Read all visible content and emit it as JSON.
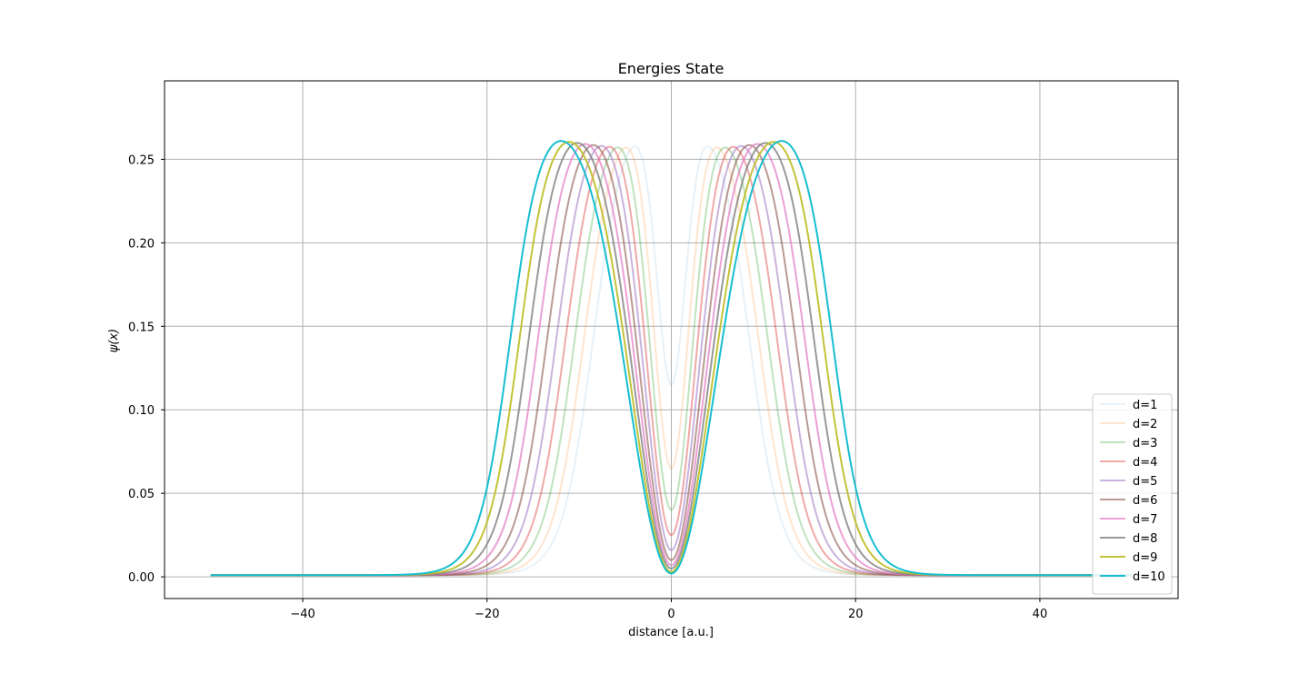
{
  "chart_data": {
    "type": "line",
    "title": "Energies State",
    "xlabel": "distance [a.u.]",
    "ylabel": "ψ(x)",
    "xlim": [
      -55,
      55
    ],
    "ylim": [
      -0.013,
      0.297
    ],
    "xticks": [
      -40,
      -20,
      0,
      20,
      40
    ],
    "xtick_labels": [
      "−40",
      "−20",
      "0",
      "20",
      "40"
    ],
    "yticks": [
      0.0,
      0.05,
      0.1,
      0.15,
      0.2,
      0.25
    ],
    "ytick_labels": [
      "0.00",
      "0.05",
      "0.10",
      "0.15",
      "0.20",
      "0.25"
    ],
    "grid": true,
    "legend_position": "lower-right",
    "x_range": [
      -50,
      50
    ],
    "peak_value": 0.282,
    "baseline_value": 0.001,
    "series": [
      {
        "name": "d=1",
        "d": 1,
        "center_value": 0.115,
        "color": "#1f77b4",
        "opacity": 0.1
      },
      {
        "name": "d=2",
        "d": 2,
        "center_value": 0.065,
        "color": "#ff7f0e",
        "opacity": 0.2
      },
      {
        "name": "d=3",
        "d": 3,
        "center_value": 0.04,
        "color": "#2ca02c",
        "opacity": 0.3
      },
      {
        "name": "d=4",
        "d": 4,
        "center_value": 0.025,
        "color": "#d62728",
        "opacity": 0.4
      },
      {
        "name": "d=5",
        "d": 5,
        "center_value": 0.016,
        "color": "#9467bd",
        "opacity": 0.5
      },
      {
        "name": "d=6",
        "d": 6,
        "center_value": 0.01,
        "color": "#8c564b",
        "opacity": 0.6
      },
      {
        "name": "d=7",
        "d": 7,
        "center_value": 0.007,
        "color": "#e377c2",
        "opacity": 0.7
      },
      {
        "name": "d=8",
        "d": 8,
        "center_value": 0.005,
        "color": "#7f7f7f",
        "opacity": 0.8
      },
      {
        "name": "d=9",
        "d": 9,
        "center_value": 0.003,
        "color": "#bcbd22",
        "opacity": 0.9
      },
      {
        "name": "d=10",
        "d": 10,
        "center_value": 0.002,
        "color": "#17becf",
        "opacity": 1.0
      }
    ]
  }
}
